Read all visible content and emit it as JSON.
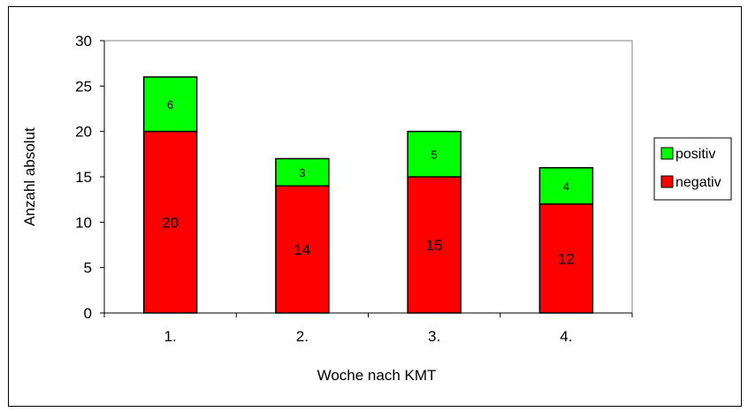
{
  "chart_data": {
    "type": "bar",
    "stacked": true,
    "categories": [
      "1.",
      "2.",
      "3.",
      "4."
    ],
    "series": [
      {
        "name": "negativ",
        "values": [
          20,
          14,
          15,
          12
        ],
        "color": "#ff0000"
      },
      {
        "name": "positiv",
        "values": [
          6,
          3,
          5,
          4
        ],
        "color": "#00ff00"
      }
    ],
    "xlabel": "Woche nach KMT",
    "ylabel": "Anzahl absolut",
    "ylim": [
      0,
      30
    ],
    "yticks": [
      0,
      5,
      10,
      15,
      20,
      25,
      30
    ],
    "grid": false,
    "legend": {
      "placement": "right",
      "entries": [
        "positiv",
        "negativ"
      ]
    }
  }
}
